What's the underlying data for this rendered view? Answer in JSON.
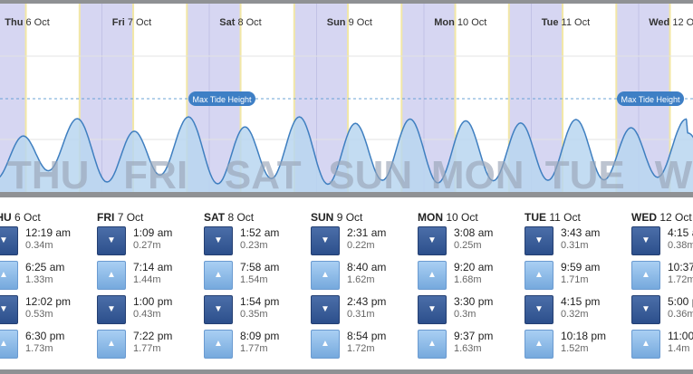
{
  "max_tide_label": "Max Tide Height",
  "colors": {
    "night": "#d6d6f2",
    "daylight": "#ffffff",
    "tide_fill": "#b9d6f0",
    "tide_line": "#3f7fc0",
    "low_button": "#2f538f",
    "high_button": "#86b6e6"
  },
  "days": [
    {
      "day": "THU",
      "date": "6 Oct",
      "chart_label": "Thu",
      "watermark": "THU",
      "tides": [
        {
          "type": "low",
          "time": "12:19 am",
          "height": "0.34m",
          "icon": "arrow-down-icon"
        },
        {
          "type": "high",
          "time": "6:25 am",
          "height": "1.33m",
          "icon": "arrow-up-icon"
        },
        {
          "type": "low",
          "time": "12:02 pm",
          "height": "0.53m",
          "icon": "arrow-down-icon"
        },
        {
          "type": "high",
          "time": "6:30 pm",
          "height": "1.73m",
          "icon": "arrow-up-icon"
        }
      ]
    },
    {
      "day": "FRI",
      "date": "7 Oct",
      "chart_label": "Fri",
      "watermark": "FRI",
      "tides": [
        {
          "type": "low",
          "time": "1:09 am",
          "height": "0.27m",
          "icon": "arrow-down-icon"
        },
        {
          "type": "high",
          "time": "7:14 am",
          "height": "1.44m",
          "icon": "arrow-up-icon"
        },
        {
          "type": "low",
          "time": "1:00 pm",
          "height": "0.43m",
          "icon": "arrow-down-icon"
        },
        {
          "type": "high",
          "time": "7:22 pm",
          "height": "1.77m",
          "icon": "arrow-up-icon"
        }
      ]
    },
    {
      "day": "SAT",
      "date": "8 Oct",
      "chart_label": "Sat",
      "watermark": "SAT",
      "tides": [
        {
          "type": "low",
          "time": "1:52 am",
          "height": "0.23m",
          "icon": "arrow-down-icon"
        },
        {
          "type": "high",
          "time": "7:58 am",
          "height": "1.54m",
          "icon": "arrow-up-icon"
        },
        {
          "type": "low",
          "time": "1:54 pm",
          "height": "0.35m",
          "icon": "arrow-down-icon"
        },
        {
          "type": "high",
          "time": "8:09 pm",
          "height": "1.77m",
          "icon": "arrow-up-icon"
        }
      ]
    },
    {
      "day": "SUN",
      "date": "9 Oct",
      "chart_label": "Sun",
      "watermark": "SUN",
      "tides": [
        {
          "type": "low",
          "time": "2:31 am",
          "height": "0.22m",
          "icon": "arrow-down-icon"
        },
        {
          "type": "high",
          "time": "8:40 am",
          "height": "1.62m",
          "icon": "arrow-up-icon"
        },
        {
          "type": "low",
          "time": "2:43 pm",
          "height": "0.31m",
          "icon": "arrow-down-icon"
        },
        {
          "type": "high",
          "time": "8:54 pm",
          "height": "1.72m",
          "icon": "arrow-up-icon"
        }
      ]
    },
    {
      "day": "MON",
      "date": "10 Oct",
      "chart_label": "Mon",
      "watermark": "MON",
      "tides": [
        {
          "type": "low",
          "time": "3:08 am",
          "height": "0.25m",
          "icon": "arrow-down-icon"
        },
        {
          "type": "high",
          "time": "9:20 am",
          "height": "1.68m",
          "icon": "arrow-up-icon"
        },
        {
          "type": "low",
          "time": "3:30 pm",
          "height": "0.3m",
          "icon": "arrow-down-icon"
        },
        {
          "type": "high",
          "time": "9:37 pm",
          "height": "1.63m",
          "icon": "arrow-up-icon"
        }
      ]
    },
    {
      "day": "TUE",
      "date": "11 Oct",
      "chart_label": "Tue",
      "watermark": "TUE",
      "tides": [
        {
          "type": "low",
          "time": "3:43 am",
          "height": "0.31m",
          "icon": "arrow-down-icon"
        },
        {
          "type": "high",
          "time": "9:59 am",
          "height": "1.71m",
          "icon": "arrow-up-icon"
        },
        {
          "type": "low",
          "time": "4:15 pm",
          "height": "0.32m",
          "icon": "arrow-down-icon"
        },
        {
          "type": "high",
          "time": "10:18 pm",
          "height": "1.52m",
          "icon": "arrow-up-icon"
        }
      ]
    },
    {
      "day": "WED",
      "date": "12 Oct",
      "chart_label": "Wed",
      "watermark": "WEI",
      "tides": [
        {
          "type": "low",
          "time": "4:15 a",
          "height": "0.38m",
          "icon": "arrow-down-icon"
        },
        {
          "type": "high",
          "time": "10:37",
          "height": "1.72m",
          "icon": "arrow-up-icon"
        },
        {
          "type": "low",
          "time": "5:00 p",
          "height": "0.36m",
          "icon": "arrow-down-icon"
        },
        {
          "type": "high",
          "time": "11:00",
          "height": "1.4m",
          "icon": "arrow-up-icon"
        }
      ]
    }
  ]
}
